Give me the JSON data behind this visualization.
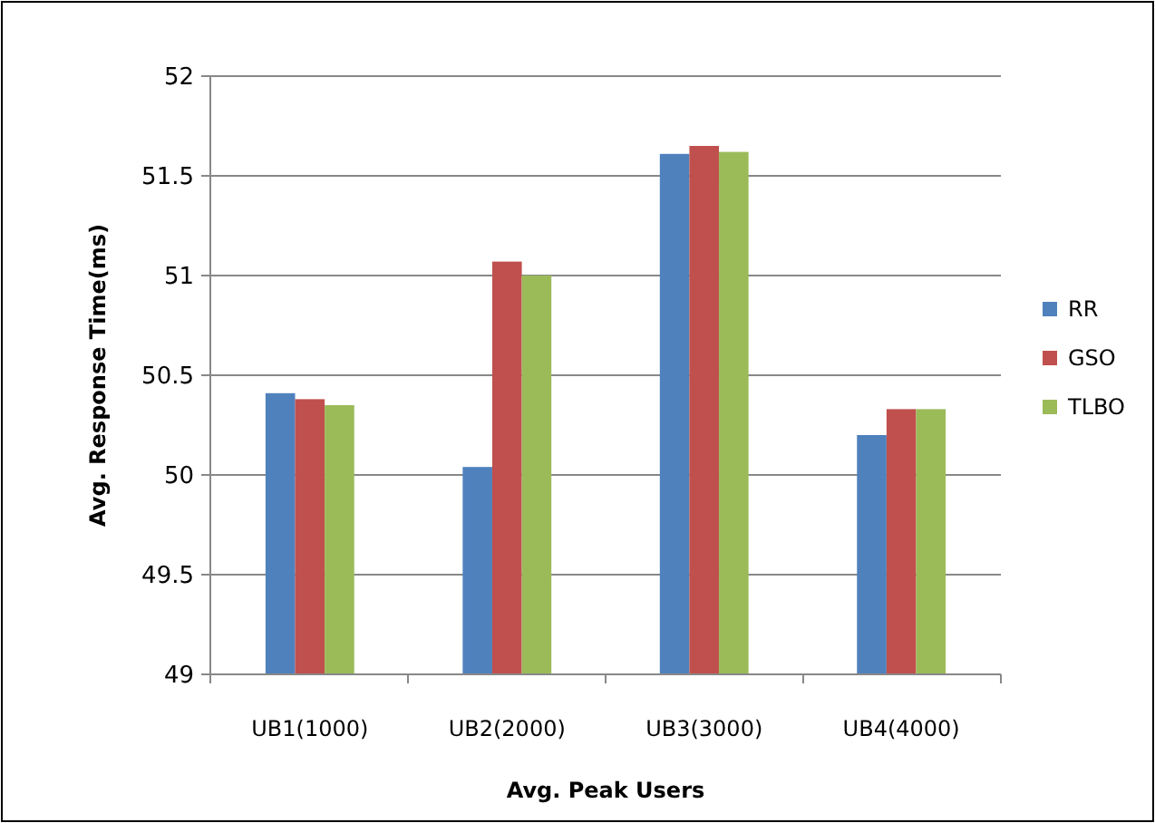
{
  "chart_data": {
    "type": "bar",
    "xlabel": "Avg. Peak Users",
    "ylabel": "Avg. Response Time(ms)",
    "categories": [
      "UB1(1000)",
      "UB2(2000)",
      "UB3(3000)",
      "UB4(4000)"
    ],
    "series": [
      {
        "name": "RR",
        "color": "#4f81bd",
        "values": [
          50.41,
          50.04,
          51.61,
          50.2
        ]
      },
      {
        "name": "GSO",
        "color": "#c0504d",
        "values": [
          50.38,
          51.07,
          51.65,
          50.33
        ]
      },
      {
        "name": "TLBO",
        "color": "#9bbb59",
        "values": [
          50.35,
          51.0,
          51.62,
          50.33
        ]
      }
    ],
    "ylim": [
      49,
      52
    ],
    "yticks": [
      49,
      49.5,
      50,
      50.5,
      51,
      51.5,
      52
    ],
    "grid": "y",
    "legend": "right"
  }
}
